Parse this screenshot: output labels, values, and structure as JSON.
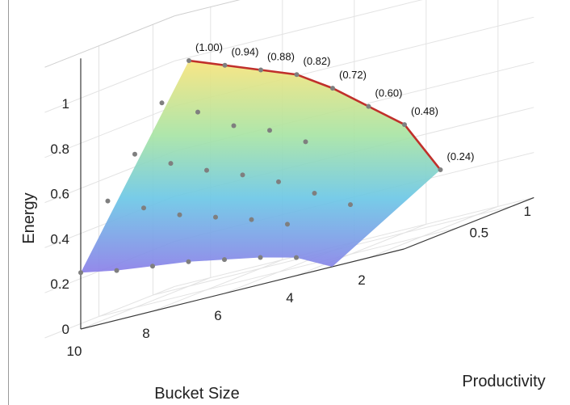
{
  "chart_data": {
    "type": "surface3d",
    "x_label": "Bucket Size",
    "y_label": "Productivity",
    "z_label": "Energy",
    "x_ticks": [
      "10",
      "8",
      "6",
      "4",
      "2"
    ],
    "y_ticks": [
      "0.5",
      "1"
    ],
    "z_ticks": [
      "0",
      "0.2",
      "0.4",
      "0.6",
      "0.8",
      "1"
    ],
    "x_range": [
      1,
      11
    ],
    "y_range": [
      0,
      1.2
    ],
    "z_range": [
      0,
      1.2
    ],
    "colormap": [
      "#8b7fe8",
      "#6cc7e6",
      "#a8e4a4",
      "#f7e47c"
    ],
    "frontier_color": "#c0302b",
    "marker_color": "#7f7f7f",
    "frontier": [
      {
        "x": 10,
        "y": 1.0,
        "z": 1.0,
        "label": "(1.00)"
      },
      {
        "x": 9,
        "y": 1.0,
        "z": 0.94,
        "label": "(0.94)"
      },
      {
        "x": 8,
        "y": 1.0,
        "z": 0.88,
        "label": "(0.88)"
      },
      {
        "x": 7,
        "y": 1.0,
        "z": 0.82,
        "label": "(0.82)"
      },
      {
        "x": 6,
        "y": 1.0,
        "z": 0.72,
        "label": "(0.72)"
      },
      {
        "x": 5,
        "y": 1.0,
        "z": 0.6,
        "label": "(0.60)"
      },
      {
        "x": 4,
        "y": 1.0,
        "z": 0.48,
        "label": "(0.48)"
      },
      {
        "x": 3,
        "y": 1.0,
        "z": 0.24,
        "label": "(0.24)"
      }
    ],
    "points": [
      {
        "x": 10,
        "y": 0.0,
        "z": 0.25
      },
      {
        "x": 9,
        "y": 0.0,
        "z": 0.22
      },
      {
        "x": 8,
        "y": 0.0,
        "z": 0.2
      },
      {
        "x": 7,
        "y": 0.0,
        "z": 0.18
      },
      {
        "x": 6,
        "y": 0.0,
        "z": 0.15
      },
      {
        "x": 5,
        "y": 0.0,
        "z": 0.12
      },
      {
        "x": 4,
        "y": 0.0,
        "z": 0.08
      },
      {
        "x": 10,
        "y": 0.25,
        "z": 0.52
      },
      {
        "x": 10,
        "y": 0.5,
        "z": 0.68
      },
      {
        "x": 10,
        "y": 0.75,
        "z": 0.86
      },
      {
        "x": 9,
        "y": 0.25,
        "z": 0.45
      },
      {
        "x": 9,
        "y": 0.5,
        "z": 0.6
      },
      {
        "x": 9,
        "y": 0.75,
        "z": 0.78
      },
      {
        "x": 8,
        "y": 0.25,
        "z": 0.38
      },
      {
        "x": 8,
        "y": 0.5,
        "z": 0.53
      },
      {
        "x": 8,
        "y": 0.75,
        "z": 0.68
      },
      {
        "x": 7,
        "y": 0.25,
        "z": 0.33
      },
      {
        "x": 7,
        "y": 0.5,
        "z": 0.47
      },
      {
        "x": 7,
        "y": 0.75,
        "z": 0.62
      },
      {
        "x": 6,
        "y": 0.25,
        "z": 0.28
      },
      {
        "x": 6,
        "y": 0.5,
        "z": 0.4
      },
      {
        "x": 6,
        "y": 0.75,
        "z": 0.53
      },
      {
        "x": 5,
        "y": 0.25,
        "z": 0.22
      },
      {
        "x": 5,
        "y": 0.5,
        "z": 0.31
      },
      {
        "x": 4,
        "y": 0.5,
        "z": 0.22
      }
    ]
  }
}
